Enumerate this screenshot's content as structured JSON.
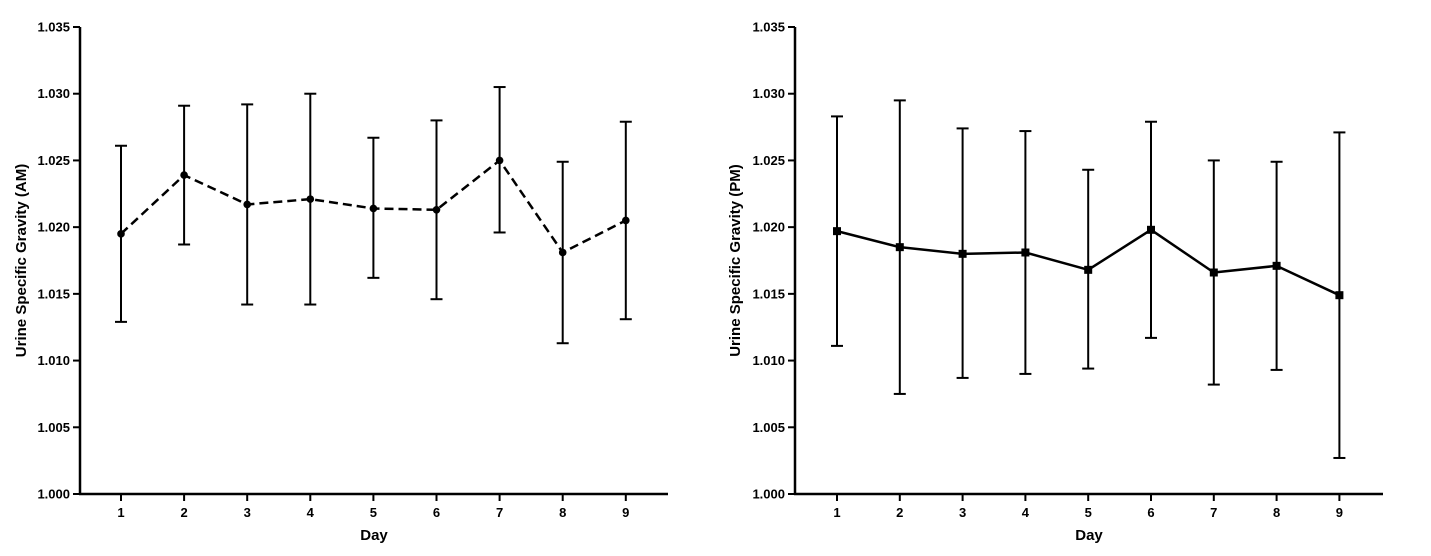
{
  "chart_data": [
    {
      "type": "line",
      "xlabel": "Day",
      "ylabel": "Urine Specific Gravity (AM)",
      "x": [
        1,
        2,
        3,
        4,
        5,
        6,
        7,
        8,
        9
      ],
      "ylim": [
        1.0,
        1.035
      ],
      "yticks": [
        "1.000",
        "1.005",
        "1.010",
        "1.015",
        "1.020",
        "1.025",
        "1.030",
        "1.035"
      ],
      "line_style": "dashed",
      "marker": "circle",
      "grid": false,
      "series": [
        {
          "values": [
            1.0195,
            1.0239,
            1.0217,
            1.0221,
            1.0214,
            1.0213,
            1.025,
            1.0181,
            1.0205
          ],
          "error_low": [
            1.0129,
            1.0187,
            1.0142,
            1.0142,
            1.0162,
            1.0146,
            1.0196,
            1.0113,
            1.0131
          ],
          "error_high": [
            1.0261,
            1.0291,
            1.0292,
            1.03,
            1.0267,
            1.028,
            1.0305,
            1.0249,
            1.0279
          ]
        }
      ]
    },
    {
      "type": "line",
      "xlabel": "Day",
      "ylabel": "Urine Specific Gravity (PM)",
      "x": [
        1,
        2,
        3,
        4,
        5,
        6,
        7,
        8,
        9
      ],
      "ylim": [
        1.0,
        1.035
      ],
      "yticks": [
        "1.000",
        "1.005",
        "1.010",
        "1.015",
        "1.020",
        "1.025",
        "1.030",
        "1.035"
      ],
      "line_style": "solid",
      "marker": "square",
      "grid": false,
      "series": [
        {
          "values": [
            1.0197,
            1.0185,
            1.018,
            1.0181,
            1.0168,
            1.0198,
            1.0166,
            1.0171,
            1.0149
          ],
          "error_low": [
            1.0111,
            1.0075,
            1.0087,
            1.009,
            1.0094,
            1.0117,
            1.0082,
            1.0093,
            1.0027
          ],
          "error_high": [
            1.0283,
            1.0295,
            1.0274,
            1.0272,
            1.0243,
            1.0279,
            1.025,
            1.0249,
            1.0271
          ]
        }
      ]
    }
  ]
}
